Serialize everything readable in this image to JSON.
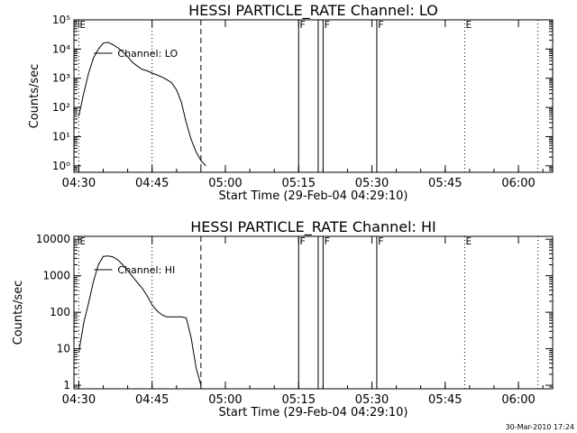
{
  "footer": {
    "timestamp": "30-Mar-2010 17:24"
  },
  "chart_data": [
    {
      "type": "line",
      "title": "HESSI PARTICLE_RATE Channel: LO",
      "xlabel": "Start Time (29-Feb-04 04:29:10)",
      "ylabel": "Counts/sec",
      "yscale": "log",
      "xlim": [
        "04:29",
        "06:07"
      ],
      "ylim": [
        0.6,
        100000
      ],
      "x_ticks": [
        "04:30",
        "04:45",
        "05:00",
        "05:15",
        "05:30",
        "05:45",
        "06:00"
      ],
      "y_ticks": [
        {
          "value": 1,
          "label": "10⁰"
        },
        {
          "value": 10,
          "label": "10¹"
        },
        {
          "value": 100,
          "label": "10²"
        },
        {
          "value": 1000,
          "label": "10³"
        },
        {
          "value": 10000,
          "label": "10⁴"
        },
        {
          "value": 100000,
          "label": "10⁵"
        }
      ],
      "series": [
        {
          "name": "Channel: LO",
          "x": [
            "04:30",
            "04:31",
            "04:32",
            "04:33",
            "04:34",
            "04:35",
            "04:36",
            "04:37",
            "04:38",
            "04:39",
            "04:40",
            "04:41",
            "04:42",
            "04:43",
            "04:44",
            "04:45",
            "04:46",
            "04:47",
            "04:48",
            "04:49",
            "04:50",
            "04:51",
            "04:52",
            "04:53",
            "04:54",
            "04:55",
            "04:56"
          ],
          "y": [
            50,
            300,
            1500,
            5000,
            10000,
            16000,
            17000,
            14000,
            11000,
            8000,
            5500,
            3500,
            2600,
            2000,
            1800,
            1500,
            1300,
            1100,
            900,
            700,
            400,
            150,
            30,
            8,
            3,
            1.5,
            1
          ]
        }
      ],
      "vlines": [
        {
          "x": "04:30",
          "style": "dotted",
          "flag": "E"
        },
        {
          "x": "04:45",
          "style": "dotted"
        },
        {
          "x": "04:55",
          "style": "dashed"
        },
        {
          "x": "05:15",
          "style": "solid",
          "flag": "F"
        },
        {
          "x": "05:19",
          "style": "solid"
        },
        {
          "x": "05:20",
          "style": "solid",
          "flag": "F"
        },
        {
          "x": "05:31",
          "style": "solid",
          "flag": "F"
        },
        {
          "x": "05:49",
          "style": "dotted",
          "flag": "E"
        },
        {
          "x": "06:04",
          "style": "dotted"
        }
      ],
      "grid": false
    },
    {
      "type": "line",
      "title": "HESSI PARTICLE_RATE Channel: HI",
      "xlabel": "Start Time (29-Feb-04 04:29:10)",
      "ylabel": "Counts/sec",
      "yscale": "log",
      "xlim": [
        "04:29",
        "06:07"
      ],
      "ylim": [
        0.8,
        12000
      ],
      "x_ticks": [
        "04:30",
        "04:45",
        "05:00",
        "05:15",
        "05:30",
        "05:45",
        "06:00"
      ],
      "y_ticks": [
        {
          "value": 1,
          "label": "1"
        },
        {
          "value": 10,
          "label": "10"
        },
        {
          "value": 100,
          "label": "100"
        },
        {
          "value": 1000,
          "label": "1000"
        },
        {
          "value": 10000,
          "label": "10000"
        }
      ],
      "series": [
        {
          "name": "Channel: HI",
          "x": [
            "04:30",
            "04:31",
            "04:32",
            "04:33",
            "04:34",
            "04:35",
            "04:36",
            "04:37",
            "04:38",
            "04:39",
            "04:40",
            "04:41",
            "04:42",
            "04:43",
            "04:44",
            "04:45",
            "04:46",
            "04:47",
            "04:48",
            "04:49",
            "04:50",
            "04:51",
            "04:52",
            "04:53",
            "04:54",
            "04:55"
          ],
          "y": [
            8,
            50,
            180,
            700,
            2000,
            3400,
            3500,
            3300,
            2700,
            2000,
            1400,
            950,
            650,
            450,
            280,
            160,
            110,
            85,
            75,
            75,
            75,
            75,
            70,
            20,
            3,
            1
          ]
        }
      ],
      "vlines": [
        {
          "x": "04:30",
          "style": "dotted",
          "flag": "E"
        },
        {
          "x": "04:45",
          "style": "dotted"
        },
        {
          "x": "04:55",
          "style": "dashed"
        },
        {
          "x": "05:15",
          "style": "solid",
          "flag": "F"
        },
        {
          "x": "05:19",
          "style": "solid"
        },
        {
          "x": "05:20",
          "style": "solid",
          "flag": "F"
        },
        {
          "x": "05:31",
          "style": "solid",
          "flag": "F"
        },
        {
          "x": "05:49",
          "style": "dotted",
          "flag": "E"
        },
        {
          "x": "06:04",
          "style": "dotted"
        }
      ],
      "grid": false
    }
  ]
}
